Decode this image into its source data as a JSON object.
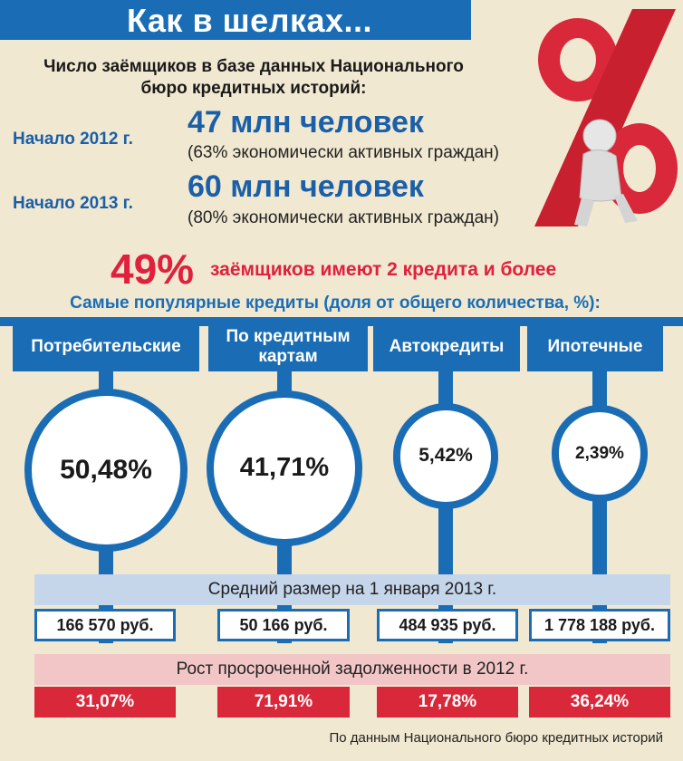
{
  "header": {
    "title": "Как в шелках..."
  },
  "intro": {
    "line1": "Число заёмщиков в базе данных Национального",
    "line2": "бюро кредитных историй:"
  },
  "borrowers": [
    {
      "label": "Начало 2012 г.",
      "count": "47 млн человек",
      "share": "(63% экономически активных граждан)"
    },
    {
      "label": "Начало 2013 г.",
      "count": "60 млн человек",
      "share": "(80% экономически активных граждан)"
    }
  ],
  "multi_loan": {
    "percent": "49%",
    "text": "заёмщиков имеют 2 кредита и более"
  },
  "popular_title": "Самые популярные кредиты (доля от общего количества, %):",
  "avg_title": "Средний размер на 1 января 2013 г.",
  "growth_title": "Рост просроченной задолженности в 2012 г.",
  "source": "По данным Национального бюро кредитных историй",
  "colors": {
    "blue": "#1a6db5",
    "red": "#d8283a",
    "background": "#f1e8d1"
  },
  "icons": {
    "illustration": "percent-sign-with-sitting-figure-icon"
  },
  "chart_data": {
    "type": "bubble",
    "categories": [
      "Потребительские",
      "По кредитным картам",
      "Автокредиты",
      "Ипотечные"
    ],
    "values": [
      50.48,
      41.71,
      5.42,
      2.39
    ],
    "value_labels": [
      "50,48%",
      "41,71%",
      "5,42%",
      "2,39%"
    ],
    "average_amount": [
      "166 570 руб.",
      "50 166 руб.",
      "484 935 руб.",
      "1 778 188 руб."
    ],
    "overdue_growth": [
      "31,07%",
      "71,91%",
      "17,78%",
      "36,24%"
    ],
    "category_labels": [
      [
        "Потребительские"
      ],
      [
        "По кредитным",
        "картам"
      ],
      [
        "Автокредиты"
      ],
      [
        "Ипотечные"
      ]
    ]
  }
}
